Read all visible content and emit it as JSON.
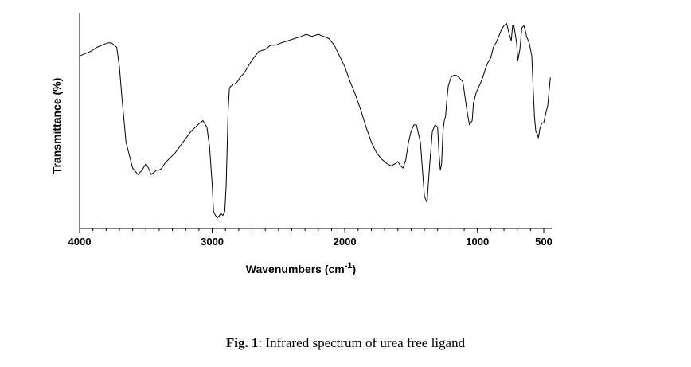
{
  "chart_data": {
    "type": "line",
    "title": "",
    "xlabel": "Wavenumbers (cm",
    "xlabel_sup": "-1",
    "xlabel_close": ")",
    "ylabel": "Transmittance (%)",
    "x_reversed": true,
    "xlim": [
      4000,
      440
    ],
    "ylim": [
      0,
      100
    ],
    "y_ticks_labeled": false,
    "x_ticks": [
      {
        "value": 4000,
        "label": "4000"
      },
      {
        "value": 3000,
        "label": "3000"
      },
      {
        "value": 2000,
        "label": "2000"
      },
      {
        "value": 1000,
        "label": "1000"
      },
      {
        "value": 500,
        "label": "500"
      }
    ],
    "line_color": "#000000",
    "series": [
      {
        "x": [
          4000,
          3920,
          3870,
          3830,
          3790,
          3760,
          3720,
          3700,
          3680,
          3650,
          3600,
          3560,
          3530,
          3500,
          3480,
          3460,
          3440,
          3420,
          3400,
          3380,
          3360,
          3330,
          3280,
          3220,
          3160,
          3110,
          3070,
          3040,
          3020,
          3000,
          2990,
          2975,
          2960,
          2945,
          2935,
          2920,
          2905,
          2895,
          2880,
          2870,
          2860,
          2850,
          2840,
          2830,
          2810,
          2790,
          2760,
          2700,
          2650,
          2600,
          2560,
          2520,
          2480,
          2430,
          2380,
          2330,
          2290,
          2250,
          2200,
          2160,
          2120,
          2080,
          2040,
          2000,
          1960,
          1920,
          1880,
          1840,
          1800,
          1760,
          1720,
          1680,
          1650,
          1620,
          1600,
          1580,
          1560,
          1540,
          1520,
          1500,
          1480,
          1460,
          1430,
          1400,
          1380,
          1360,
          1340,
          1320,
          1300,
          1290,
          1280,
          1270,
          1260,
          1250,
          1240,
          1230,
          1220,
          1200,
          1180,
          1160,
          1140,
          1110,
          1080,
          1060,
          1040,
          1030,
          1010,
          995,
          980,
          960,
          940,
          920,
          900,
          880,
          860,
          840,
          820,
          800,
          780,
          760,
          745,
          735,
          725,
          715,
          705,
          695,
          680,
          665,
          650,
          640,
          630,
          610,
          590,
          580,
          570,
          560,
          550,
          540,
          530,
          520,
          510,
          500,
          490,
          470,
          450
        ],
        "y": [
          80,
          82,
          84,
          85,
          86,
          86,
          84,
          75,
          60,
          40,
          28,
          25,
          27,
          30,
          28,
          25,
          26,
          27,
          27,
          28,
          30,
          32,
          35,
          40,
          45,
          48,
          50,
          47,
          38,
          20,
          8,
          6,
          5,
          6,
          7,
          6,
          8,
          20,
          55,
          65,
          66,
          66,
          67,
          67,
          68,
          70,
          72,
          78,
          82,
          83,
          85,
          85,
          86,
          87,
          88,
          89,
          90,
          89,
          90,
          89,
          88,
          85,
          80,
          75,
          68,
          62,
          55,
          47,
          40,
          35,
          32,
          30,
          29,
          30,
          31,
          29,
          28,
          32,
          40,
          45,
          48,
          48,
          40,
          15,
          12,
          30,
          45,
          48,
          47,
          35,
          27,
          30,
          45,
          50,
          52,
          60,
          66,
          70,
          71,
          71,
          70,
          68,
          55,
          48,
          50,
          58,
          63,
          65,
          67,
          70,
          74,
          77,
          79,
          84,
          86,
          89,
          92,
          94,
          95,
          90,
          87,
          94,
          94,
          90,
          86,
          78,
          83,
          93,
          94,
          92,
          89,
          86,
          80,
          65,
          52,
          45,
          44,
          42,
          46,
          48,
          49,
          49,
          52,
          57,
          70
        ]
      }
    ]
  },
  "caption": {
    "fig_label": "Fig. 1",
    "text": ": Infrared spectrum of urea free ligand"
  }
}
